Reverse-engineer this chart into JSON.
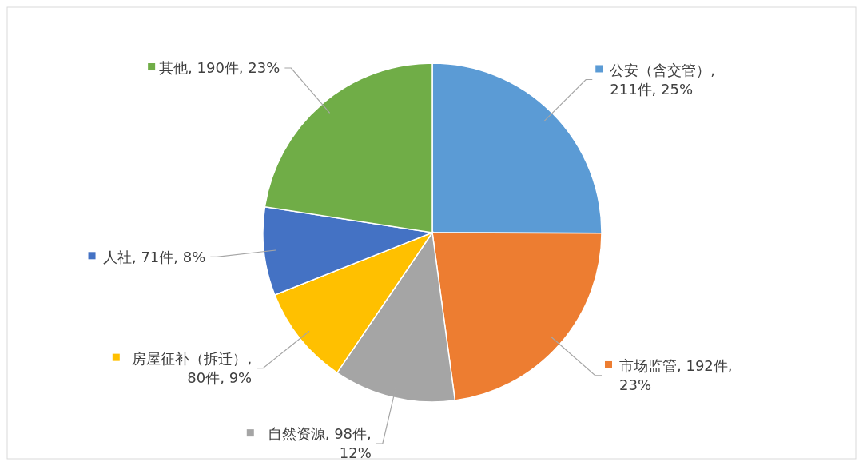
{
  "chart_data": {
    "type": "pie",
    "categories": [
      "公安（含交管）",
      "市场监管",
      "自然资源",
      "房屋征补（拆迁）",
      "人社",
      "其他"
    ],
    "values": [
      211,
      192,
      98,
      80,
      71,
      190
    ],
    "colors": [
      "#5b9bd5",
      "#ed7d31",
      "#a5a5a5",
      "#ffc000",
      "#4472c4",
      "#70ad47"
    ],
    "legend": "bottom left",
    "value_labels": [
      ", 211件, 25%",
      ", 192件, 23%",
      ", 98件, 12%",
      ", 80件, 9%",
      ", 71件, 8%",
      ", 190件, 23%"
    ]
  }
}
